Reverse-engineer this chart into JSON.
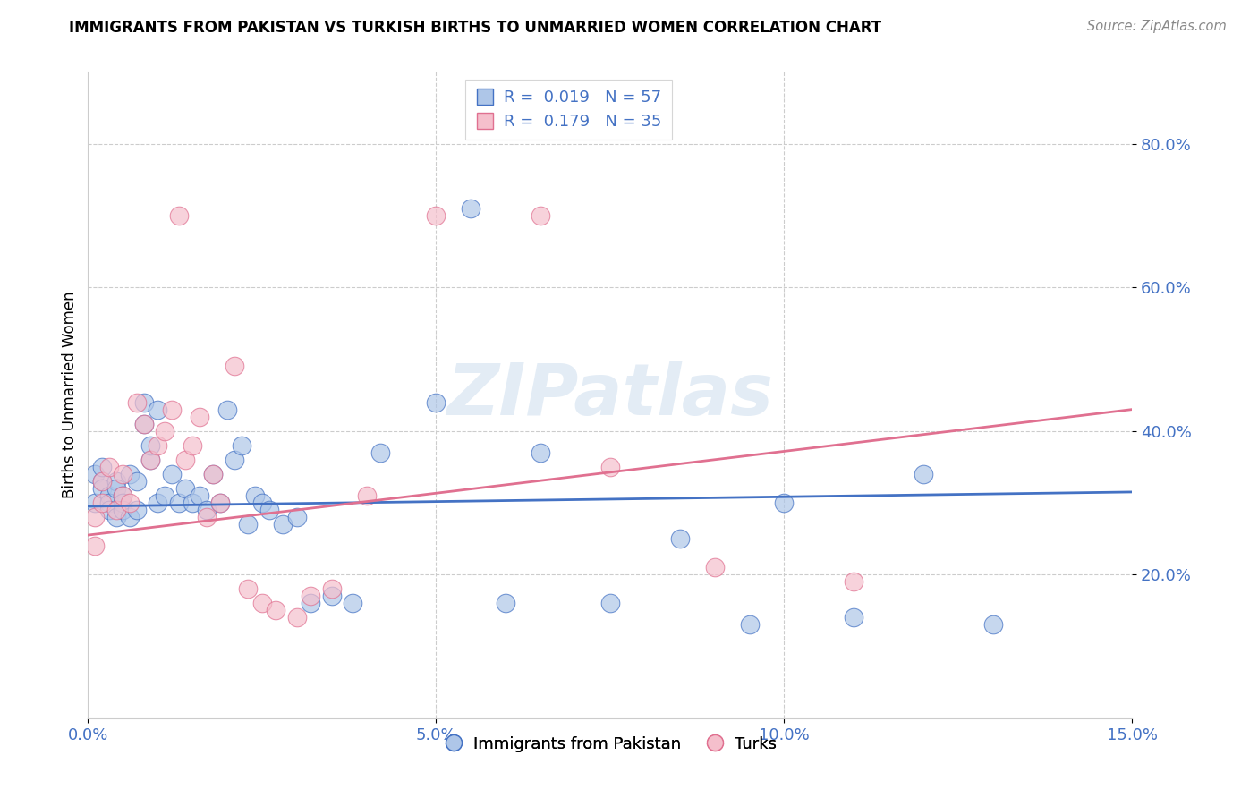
{
  "title": "IMMIGRANTS FROM PAKISTAN VS TURKISH BIRTHS TO UNMARRIED WOMEN CORRELATION CHART",
  "source": "Source: ZipAtlas.com",
  "ylabel": "Births to Unmarried Women",
  "x_min": 0.0,
  "x_max": 0.15,
  "y_min": 0.0,
  "y_max": 0.9,
  "x_ticks": [
    0.0,
    0.05,
    0.1,
    0.15
  ],
  "x_tick_labels": [
    "0.0%",
    "5.0%",
    "10.0%",
    "15.0%"
  ],
  "y_ticks": [
    0.2,
    0.4,
    0.6,
    0.8
  ],
  "y_tick_labels": [
    "20.0%",
    "40.0%",
    "60.0%",
    "80.0%"
  ],
  "watermark": "ZIPatlas",
  "legend1_R": "0.019",
  "legend1_N": "57",
  "legend2_R": "0.179",
  "legend2_N": "35",
  "color_blue_fill": "#aec6e8",
  "color_pink_fill": "#f5bfcc",
  "color_blue_edge": "#4472c4",
  "color_pink_edge": "#e07090",
  "color_blue_line": "#4472c4",
  "color_pink_line": "#e07090",
  "color_axis_text": "#4472c4",
  "blue_line_y0": 0.295,
  "blue_line_y1": 0.315,
  "pink_line_y0": 0.255,
  "pink_line_y1": 0.43,
  "blue_x": [
    0.001,
    0.001,
    0.002,
    0.002,
    0.002,
    0.003,
    0.003,
    0.003,
    0.004,
    0.004,
    0.004,
    0.005,
    0.005,
    0.005,
    0.006,
    0.006,
    0.007,
    0.007,
    0.008,
    0.008,
    0.009,
    0.009,
    0.01,
    0.01,
    0.011,
    0.012,
    0.013,
    0.014,
    0.015,
    0.016,
    0.017,
    0.018,
    0.019,
    0.02,
    0.021,
    0.022,
    0.023,
    0.024,
    0.025,
    0.026,
    0.028,
    0.03,
    0.032,
    0.035,
    0.038,
    0.042,
    0.05,
    0.055,
    0.06,
    0.065,
    0.075,
    0.085,
    0.095,
    0.1,
    0.11,
    0.12,
    0.13
  ],
  "blue_y": [
    0.34,
    0.3,
    0.33,
    0.32,
    0.35,
    0.31,
    0.3,
    0.29,
    0.33,
    0.32,
    0.28,
    0.31,
    0.3,
    0.29,
    0.34,
    0.28,
    0.33,
    0.29,
    0.44,
    0.41,
    0.36,
    0.38,
    0.43,
    0.3,
    0.31,
    0.34,
    0.3,
    0.32,
    0.3,
    0.31,
    0.29,
    0.34,
    0.3,
    0.43,
    0.36,
    0.38,
    0.27,
    0.31,
    0.3,
    0.29,
    0.27,
    0.28,
    0.16,
    0.17,
    0.16,
    0.37,
    0.44,
    0.71,
    0.16,
    0.37,
    0.16,
    0.25,
    0.13,
    0.3,
    0.14,
    0.34,
    0.13
  ],
  "pink_x": [
    0.001,
    0.001,
    0.002,
    0.002,
    0.003,
    0.004,
    0.005,
    0.005,
    0.006,
    0.007,
    0.008,
    0.009,
    0.01,
    0.011,
    0.012,
    0.013,
    0.014,
    0.015,
    0.016,
    0.017,
    0.018,
    0.019,
    0.021,
    0.023,
    0.025,
    0.027,
    0.03,
    0.032,
    0.035,
    0.04,
    0.05,
    0.065,
    0.075,
    0.09,
    0.11
  ],
  "pink_y": [
    0.28,
    0.24,
    0.33,
    0.3,
    0.35,
    0.29,
    0.34,
    0.31,
    0.3,
    0.44,
    0.41,
    0.36,
    0.38,
    0.4,
    0.43,
    0.7,
    0.36,
    0.38,
    0.42,
    0.28,
    0.34,
    0.3,
    0.49,
    0.18,
    0.16,
    0.15,
    0.14,
    0.17,
    0.18,
    0.31,
    0.7,
    0.7,
    0.35,
    0.21,
    0.19
  ]
}
